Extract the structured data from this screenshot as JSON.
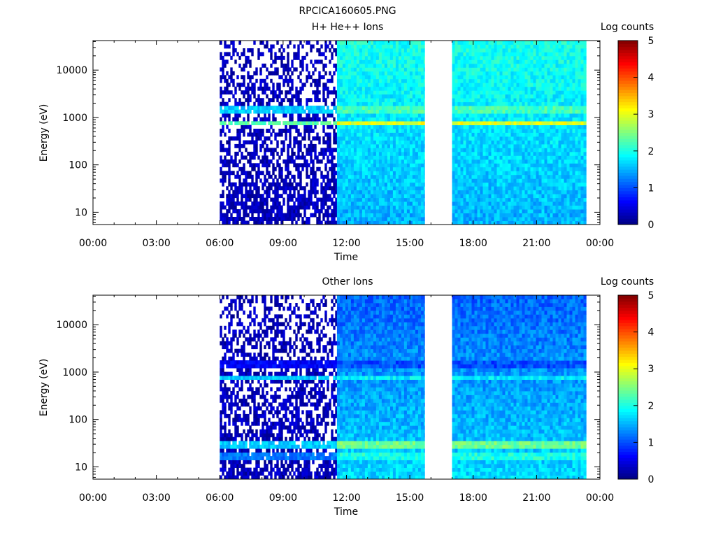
{
  "page_title": "RPCICA160605.PNG",
  "chart_data": [
    {
      "type": "heatmap",
      "title": "H+ He++ Ions",
      "xlabel": "Time",
      "ylabel": "Energy (eV)",
      "x_ticks": [
        "00:00",
        "03:00",
        "06:00",
        "09:00",
        "12:00",
        "15:00",
        "18:00",
        "21:00",
        "00:00"
      ],
      "x_range_hours": [
        0,
        24
      ],
      "y_scale": "log",
      "y_range_ev": [
        5.5,
        42000
      ],
      "y_ticks": [
        {
          "value": 10,
          "label": "10"
        },
        {
          "value": 100,
          "label": "100"
        },
        {
          "value": 1000,
          "label": "1000"
        },
        {
          "value": 10000,
          "label": "10000"
        }
      ],
      "colorbar": {
        "label": "Log counts",
        "range": [
          0,
          5
        ],
        "ticks": [
          "0",
          "1",
          "2",
          "3",
          "4",
          "5"
        ],
        "colormap": "jet"
      },
      "data_segments_hours": [
        {
          "start": 6.0,
          "end": 11.55,
          "mode": "sparse"
        },
        {
          "start": 11.55,
          "end": 15.7,
          "mode": "dense"
        },
        {
          "start": 17.0,
          "end": 23.35,
          "mode": "dense"
        }
      ],
      "bands": [
        {
          "energy_ev": 750,
          "log_counts_sparse": 2.3,
          "log_counts_dense": 3.0
        },
        {
          "energy_ev": 1550,
          "log_counts_sparse": 1.6,
          "log_counts_dense": 2.2
        }
      ],
      "background_log_counts": {
        "high_energy": 2.0,
        "low_energy": 1.5
      }
    },
    {
      "type": "heatmap",
      "title": "Other Ions",
      "xlabel": "Time",
      "ylabel": "Energy (eV)",
      "x_ticks": [
        "00:00",
        "03:00",
        "06:00",
        "09:00",
        "12:00",
        "15:00",
        "18:00",
        "21:00",
        "00:00"
      ],
      "x_range_hours": [
        0,
        24
      ],
      "y_scale": "log",
      "y_range_ev": [
        5.5,
        42000
      ],
      "y_ticks": [
        {
          "value": 10,
          "label": "10"
        },
        {
          "value": 100,
          "label": "100"
        },
        {
          "value": 1000,
          "label": "1000"
        },
        {
          "value": 10000,
          "label": "10000"
        }
      ],
      "colorbar": {
        "label": "Log counts",
        "range": [
          0,
          5
        ],
        "ticks": [
          "0",
          "1",
          "2",
          "3",
          "4",
          "5"
        ],
        "colormap": "jet"
      },
      "data_segments_hours": [
        {
          "start": 6.0,
          "end": 11.55,
          "mode": "sparse"
        },
        {
          "start": 11.55,
          "end": 15.7,
          "mode": "dense"
        },
        {
          "start": 17.0,
          "end": 23.35,
          "mode": "dense"
        }
      ],
      "bands": [
        {
          "energy_ev": 750,
          "log_counts_sparse": 1.6,
          "log_counts_dense": 1.8
        },
        {
          "energy_ev": 1550,
          "log_counts_sparse": 0.6,
          "log_counts_dense": 1.0
        },
        {
          "energy_ev": 28,
          "log_counts_sparse": 1.6,
          "log_counts_dense": 2.4
        },
        {
          "energy_ev": 18,
          "log_counts_sparse": 1.2,
          "log_counts_dense": 2.0
        }
      ],
      "background_log_counts": {
        "high_energy": 1.1,
        "low_energy": 1.7
      }
    }
  ]
}
